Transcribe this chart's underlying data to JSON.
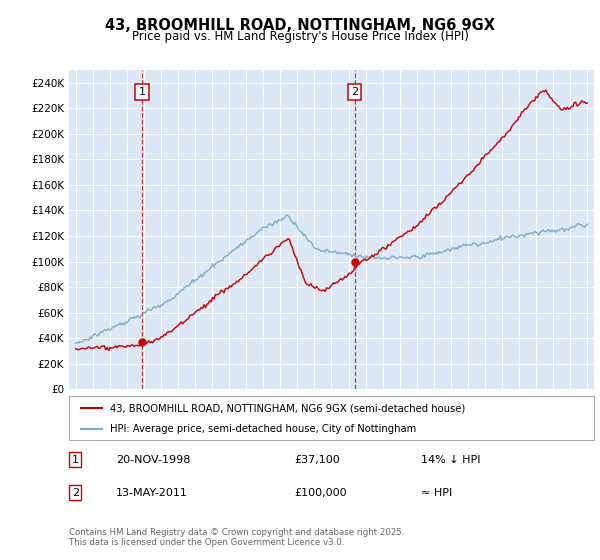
{
  "title_line1": "43, BROOMHILL ROAD, NOTTINGHAM, NG6 9GX",
  "title_line2": "Price paid vs. HM Land Registry's House Price Index (HPI)",
  "plot_bg_color": "#dce8f5",
  "red_color": "#cc0000",
  "blue_color": "#7aabcc",
  "ylim": [
    0,
    250000
  ],
  "yticks": [
    0,
    20000,
    40000,
    60000,
    80000,
    100000,
    120000,
    140000,
    160000,
    180000,
    200000,
    220000,
    240000
  ],
  "sale1_year": 1998.88,
  "sale1_price": 37100,
  "sale2_year": 2011.36,
  "sale2_price": 100000,
  "legend_red": "43, BROOMHILL ROAD, NOTTINGHAM, NG6 9GX (semi-detached house)",
  "legend_blue": "HPI: Average price, semi-detached house, City of Nottingham",
  "table_row1_date": "20-NOV-1998",
  "table_row1_price": "£37,100",
  "table_row1_hpi": "14% ↓ HPI",
  "table_row2_date": "13-MAY-2011",
  "table_row2_price": "£100,000",
  "table_row2_hpi": "≈ HPI",
  "footer": "Contains HM Land Registry data © Crown copyright and database right 2025.\nThis data is licensed under the Open Government Licence v3.0."
}
